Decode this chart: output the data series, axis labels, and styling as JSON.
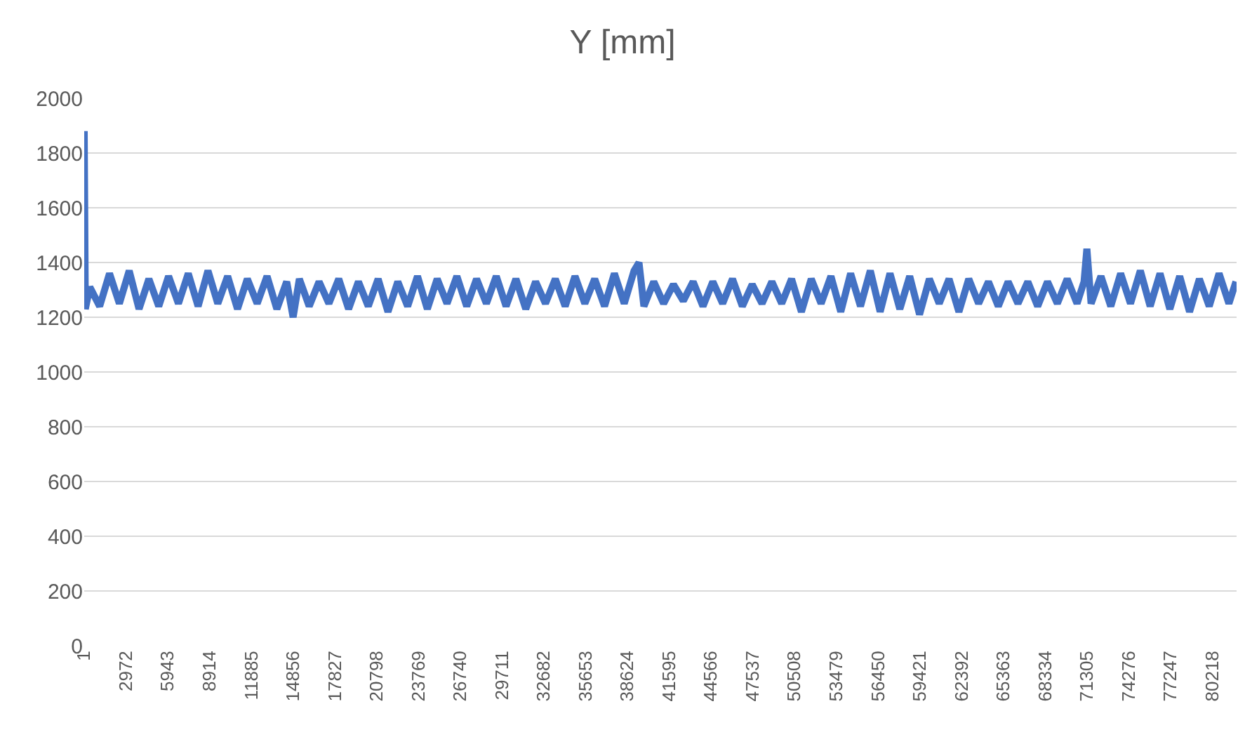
{
  "chart_data": {
    "type": "line",
    "title": "Y [mm]",
    "x": [
      1,
      80,
      400,
      1100,
      1800,
      2500,
      3200,
      3900,
      4600,
      5300,
      6000,
      6700,
      7400,
      8100,
      8800,
      9500,
      10200,
      10900,
      11600,
      12300,
      13000,
      13700,
      14400,
      14856,
      15300,
      16000,
      16700,
      17400,
      18100,
      18800,
      19500,
      20200,
      20900,
      21600,
      22300,
      23000,
      23700,
      24400,
      25100,
      25800,
      26500,
      27200,
      27900,
      28600,
      29300,
      30000,
      30700,
      31400,
      32100,
      32800,
      33500,
      34200,
      34900,
      35600,
      36300,
      37000,
      37700,
      38400,
      39100,
      39450,
      39800,
      40500,
      41200,
      41900,
      42600,
      43300,
      44000,
      44700,
      45400,
      46100,
      46800,
      47500,
      48200,
      48900,
      49600,
      50300,
      51000,
      51700,
      52400,
      53100,
      53800,
      54500,
      55200,
      55900,
      56600,
      57300,
      58000,
      58700,
      59400,
      60100,
      60800,
      61500,
      62200,
      62900,
      63600,
      64300,
      65000,
      65700,
      66400,
      67100,
      67800,
      68500,
      69200,
      69900,
      70600,
      71100,
      71300,
      71600,
      72300,
      73000,
      73700,
      74400,
      75100,
      75800,
      76500,
      77200,
      77900,
      78600,
      79300,
      80000,
      80700,
      81400,
      81900
    ],
    "series": [
      {
        "color": "#4472c4",
        "values": [
          1880,
          1230,
          1310,
          1240,
          1360,
          1250,
          1370,
          1230,
          1340,
          1240,
          1350,
          1250,
          1360,
          1240,
          1370,
          1250,
          1350,
          1230,
          1340,
          1250,
          1350,
          1230,
          1330,
          1200,
          1340,
          1240,
          1330,
          1250,
          1340,
          1230,
          1330,
          1240,
          1340,
          1220,
          1330,
          1240,
          1350,
          1230,
          1340,
          1250,
          1350,
          1240,
          1340,
          1250,
          1350,
          1240,
          1340,
          1230,
          1330,
          1250,
          1340,
          1240,
          1350,
          1250,
          1340,
          1240,
          1360,
          1250,
          1370,
          1400,
          1240,
          1330,
          1250,
          1320,
          1260,
          1330,
          1240,
          1330,
          1250,
          1340,
          1240,
          1320,
          1250,
          1330,
          1250,
          1340,
          1220,
          1340,
          1250,
          1350,
          1220,
          1360,
          1240,
          1370,
          1220,
          1360,
          1230,
          1350,
          1210,
          1340,
          1250,
          1340,
          1220,
          1340,
          1250,
          1330,
          1240,
          1330,
          1250,
          1330,
          1240,
          1330,
          1250,
          1340,
          1250,
          1330,
          1450,
          1250,
          1350,
          1240,
          1360,
          1250,
          1370,
          1240,
          1360,
          1230,
          1350,
          1220,
          1340,
          1240,
          1360,
          1250,
          1330
        ]
      }
    ],
    "xlim": [
      1,
      81945
    ],
    "xticks": [
      1,
      2972,
      5943,
      8914,
      11885,
      14856,
      17827,
      20798,
      23769,
      26740,
      29711,
      32682,
      35653,
      38624,
      41595,
      44566,
      47537,
      50508,
      53479,
      56450,
      59421,
      62392,
      65363,
      68334,
      71305,
      74276,
      77247,
      80218
    ],
    "ylim": [
      0,
      2000
    ],
    "yticks": [
      0,
      200,
      400,
      600,
      800,
      1000,
      1200,
      1400,
      1600,
      1800,
      2000
    ],
    "grid": "y",
    "legend": false,
    "marker": "none",
    "line_style": "solid"
  }
}
